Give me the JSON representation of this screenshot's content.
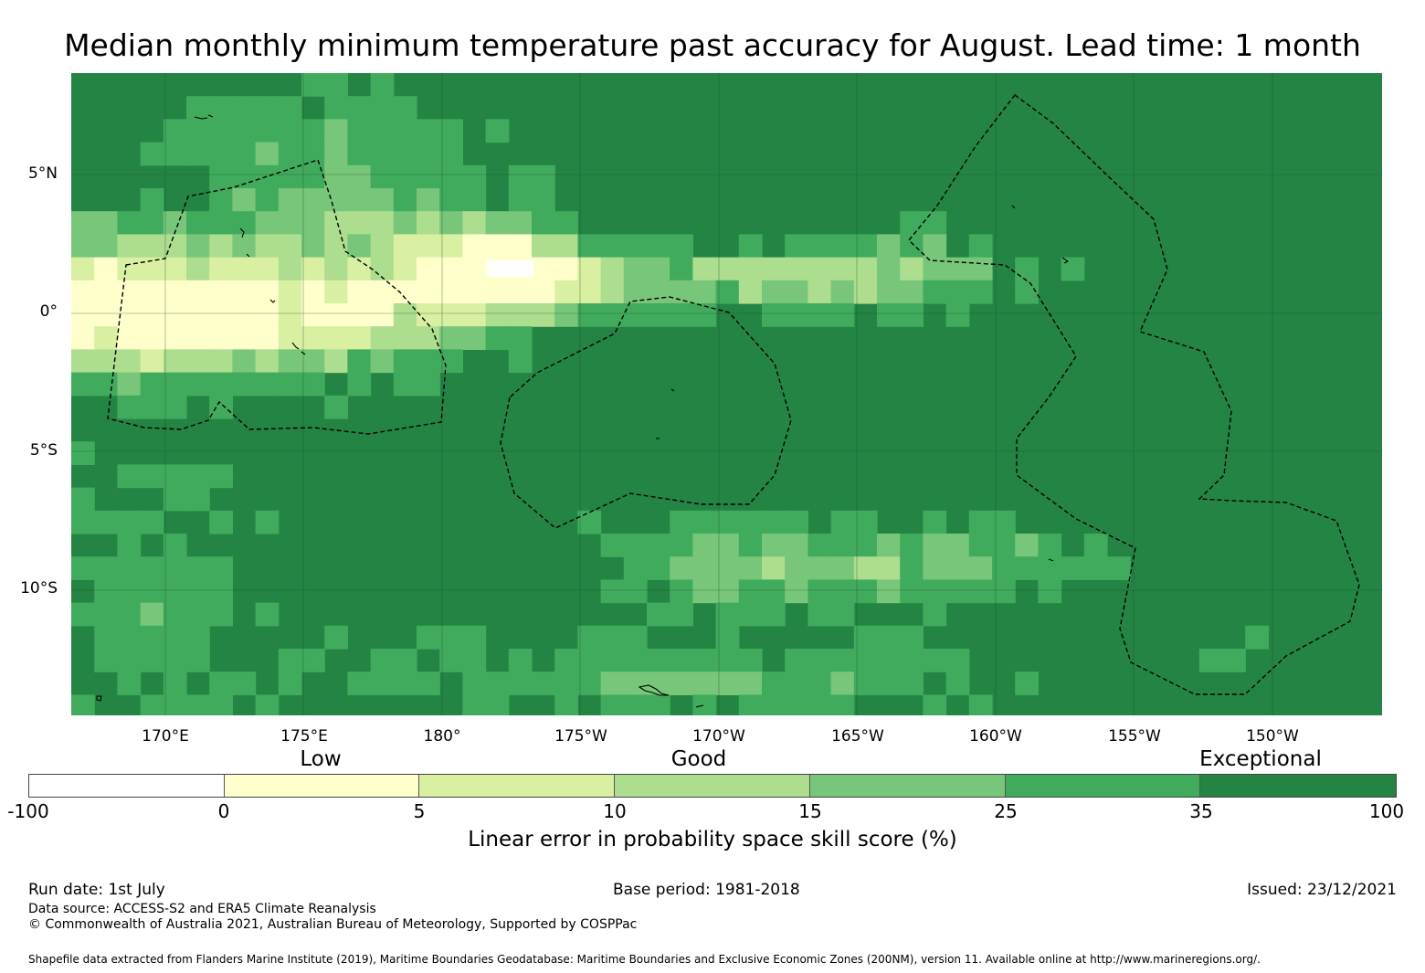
{
  "title": "Median monthly minimum temperature past accuracy for August. Lead time: 1 month",
  "map": {
    "lat_labels": [
      "5°N",
      "0°",
      "5°S",
      "10°S"
    ],
    "lon_labels": [
      "170°E",
      "175°E",
      "180°",
      "175°W",
      "170°W",
      "165°W",
      "160°W",
      "155°W",
      "150°W"
    ],
    "colors": {
      "negative": "#ffffff",
      "0_5": "#ffffcc",
      "5_10": "#d9f0a3",
      "10_15": "#addd8e",
      "15_25": "#78c679",
      "25_35": "#41ab5d",
      "35_100": "#238443",
      "boundary": "#000000",
      "gridline": "#1a4d2a"
    }
  },
  "legend": {
    "categories": [
      "Low",
      "Good",
      "Exceptional"
    ],
    "ticks": [
      "-100",
      "0",
      "5",
      "10",
      "15",
      "25",
      "35",
      "100"
    ],
    "colors": [
      "#ffffff",
      "#ffffcc",
      "#d9f0a3",
      "#addd8e",
      "#78c679",
      "#41ab5d",
      "#238443"
    ],
    "label": "Linear error in probability space skill score (%)"
  },
  "footer": {
    "run_date": "Run date: 1st July",
    "base_period": "Base period: 1981-2018",
    "issued": "Issued: 23/12/2021",
    "data_source": "Data source: ACCESS-S2 and ERA5 Climate Reanalysis",
    "copyright": "© Commonwealth of Australia 2021, Australian Bureau of Meteorology, Supported by COSPPac",
    "shapefile": "Shapefile data extracted from Flanders Marine Institute (2019), Maritime Boundaries Geodatabase: Maritime Boundaries and Exclusive Economic Zones (200NM), version 11. Available online at http://www.marineregions.org/."
  }
}
